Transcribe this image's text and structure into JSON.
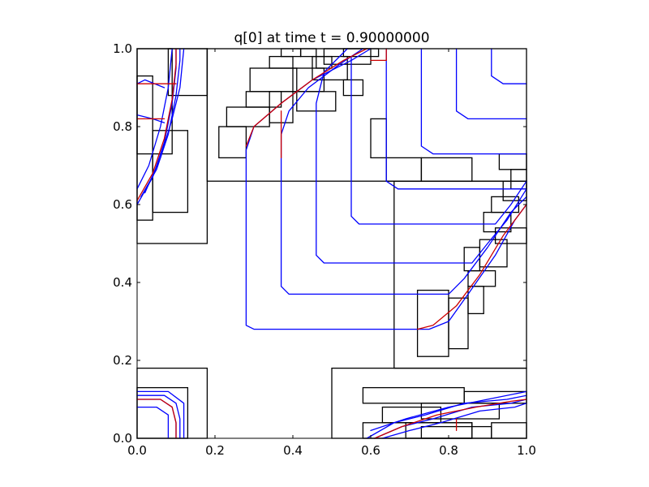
{
  "chart_data": {
    "type": "contour",
    "title": "q[0] at time t =     0.90000000",
    "xlim": [
      0,
      1
    ],
    "ylim": [
      0,
      1
    ],
    "x_ticks": [
      0.0,
      0.2,
      0.4,
      0.6,
      0.8,
      1.0
    ],
    "y_ticks": [
      0.0,
      0.2,
      0.4,
      0.6,
      0.8,
      1.0
    ],
    "x_tick_labels": [
      "0.0",
      "0.2",
      "0.4",
      "0.6",
      "0.8",
      "1.0"
    ],
    "y_tick_labels": [
      "0.0",
      "0.2",
      "0.4",
      "0.6",
      "0.8",
      "1.0"
    ],
    "grid": false,
    "colors": {
      "contour_lines": "#0000ff",
      "front_lines": "#cc0000",
      "patch_borders": "#000000"
    },
    "patches": [
      [
        0.0,
        0.5,
        0.18,
        1.0
      ],
      [
        0.0,
        0.56,
        0.04,
        0.93
      ],
      [
        0.0,
        0.73,
        0.09,
        1.0
      ],
      [
        0.04,
        0.58,
        0.13,
        0.79
      ],
      [
        0.08,
        0.88,
        0.18,
        1.0
      ],
      [
        0.18,
        0.66,
        1.0,
        1.0
      ],
      [
        0.21,
        0.72,
        0.28,
        0.8
      ],
      [
        0.23,
        0.8,
        0.34,
        0.85
      ],
      [
        0.28,
        0.85,
        0.37,
        0.89
      ],
      [
        0.34,
        0.81,
        0.4,
        0.89
      ],
      [
        0.29,
        0.89,
        0.41,
        0.95
      ],
      [
        0.34,
        0.95,
        0.4,
        0.98
      ],
      [
        0.37,
        0.98,
        0.42,
        1.0
      ],
      [
        0.41,
        0.84,
        0.51,
        0.89
      ],
      [
        0.4,
        0.89,
        0.48,
        0.95
      ],
      [
        0.45,
        0.92,
        0.54,
        0.98
      ],
      [
        0.48,
        0.96,
        0.6,
        1.0
      ],
      [
        0.53,
        0.98,
        0.62,
        1.0
      ],
      [
        0.42,
        0.98,
        0.46,
        1.0
      ],
      [
        0.46,
        0.95,
        0.5,
        0.98
      ],
      [
        0.53,
        0.88,
        0.58,
        0.92
      ],
      [
        0.6,
        0.72,
        0.64,
        0.82
      ],
      [
        0.64,
        0.66,
        0.73,
        0.72
      ],
      [
        0.73,
        0.66,
        0.86,
        0.72
      ],
      [
        0.66,
        0.18,
        1.0,
        0.66
      ],
      [
        0.72,
        0.21,
        0.8,
        0.38
      ],
      [
        0.8,
        0.23,
        0.85,
        0.36
      ],
      [
        0.85,
        0.32,
        0.89,
        0.39
      ],
      [
        0.85,
        0.39,
        0.92,
        0.43
      ],
      [
        0.84,
        0.43,
        0.88,
        0.49
      ],
      [
        0.88,
        0.44,
        0.95,
        0.51
      ],
      [
        0.92,
        0.5,
        1.0,
        0.54
      ],
      [
        0.89,
        0.53,
        0.96,
        0.58
      ],
      [
        0.91,
        0.58,
        0.98,
        0.62
      ],
      [
        0.94,
        0.61,
        1.0,
        0.66
      ],
      [
        0.96,
        0.64,
        1.0,
        0.69
      ],
      [
        0.93,
        0.69,
        1.0,
        0.73
      ],
      [
        0.0,
        0.0,
        0.18,
        0.18
      ],
      [
        0.0,
        0.0,
        0.13,
        0.13
      ],
      [
        0.5,
        0.0,
        1.0,
        0.18
      ],
      [
        0.58,
        0.0,
        0.86,
        0.04
      ],
      [
        0.63,
        0.04,
        0.78,
        0.08
      ],
      [
        0.69,
        0.0,
        0.86,
        0.04
      ],
      [
        0.73,
        0.05,
        0.93,
        0.09
      ],
      [
        0.58,
        0.09,
        0.84,
        0.13
      ],
      [
        0.84,
        0.09,
        1.0,
        0.12
      ],
      [
        0.73,
        0.0,
        0.91,
        0.03
      ],
      [
        0.91,
        0.0,
        1.0,
        0.04
      ]
    ],
    "contour_lines": [
      [
        [
          0.0,
          0.6
        ],
        [
          0.04,
          0.67
        ],
        [
          0.07,
          0.76
        ],
        [
          0.09,
          0.86
        ],
        [
          0.1,
          0.95
        ],
        [
          0.1,
          1.0
        ]
      ],
      [
        [
          0.01,
          0.62
        ],
        [
          0.05,
          0.69
        ],
        [
          0.08,
          0.78
        ],
        [
          0.1,
          0.88
        ],
        [
          0.11,
          0.97
        ],
        [
          0.11,
          1.0
        ]
      ],
      [
        [
          0.0,
          0.64
        ],
        [
          0.03,
          0.7
        ],
        [
          0.06,
          0.8
        ],
        [
          0.08,
          0.9
        ],
        [
          0.09,
          1.0
        ]
      ],
      [
        [
          0.02,
          0.63
        ],
        [
          0.06,
          0.72
        ],
        [
          0.09,
          0.82
        ],
        [
          0.11,
          0.9
        ],
        [
          0.12,
          1.0
        ]
      ],
      [
        [
          0.0,
          0.91
        ],
        [
          0.02,
          0.92
        ],
        [
          0.07,
          0.9
        ]
      ],
      [
        [
          0.0,
          0.83
        ],
        [
          0.04,
          0.82
        ],
        [
          0.07,
          0.81
        ]
      ],
      [
        [
          0.0,
          0.1
        ],
        [
          0.06,
          0.1
        ],
        [
          0.09,
          0.08
        ],
        [
          0.1,
          0.04
        ],
        [
          0.1,
          0.0
        ]
      ],
      [
        [
          0.0,
          0.11
        ],
        [
          0.07,
          0.11
        ],
        [
          0.1,
          0.09
        ],
        [
          0.11,
          0.05
        ],
        [
          0.11,
          0.0
        ]
      ],
      [
        [
          0.0,
          0.08
        ],
        [
          0.05,
          0.08
        ],
        [
          0.08,
          0.06
        ],
        [
          0.08,
          0.0
        ]
      ],
      [
        [
          0.0,
          0.12
        ],
        [
          0.08,
          0.12
        ],
        [
          0.12,
          0.09
        ],
        [
          0.12,
          0.0
        ]
      ],
      [
        [
          0.61,
          0.0
        ],
        [
          0.68,
          0.03
        ],
        [
          0.76,
          0.05
        ],
        [
          0.86,
          0.08
        ],
        [
          0.96,
          0.09
        ],
        [
          1.0,
          0.1
        ]
      ],
      [
        [
          0.59,
          0.0
        ],
        [
          0.66,
          0.04
        ],
        [
          0.74,
          0.06
        ],
        [
          0.84,
          0.09
        ],
        [
          0.95,
          0.1
        ],
        [
          1.0,
          0.11
        ]
      ],
      [
        [
          0.63,
          0.0
        ],
        [
          0.7,
          0.02
        ],
        [
          0.78,
          0.04
        ],
        [
          0.88,
          0.07
        ],
        [
          0.97,
          0.08
        ],
        [
          1.0,
          0.09
        ]
      ],
      [
        [
          0.6,
          0.02
        ],
        [
          0.69,
          0.05
        ],
        [
          0.8,
          0.08
        ],
        [
          0.9,
          0.1
        ],
        [
          1.0,
          0.12
        ]
      ],
      [
        [
          0.6,
          1.0
        ],
        [
          0.55,
          0.97
        ],
        [
          0.45,
          0.92
        ],
        [
          0.37,
          0.86
        ],
        [
          0.3,
          0.8
        ],
        [
          0.28,
          0.74
        ],
        [
          0.28,
          0.29
        ],
        [
          0.3,
          0.28
        ],
        [
          0.75,
          0.28
        ],
        [
          0.8,
          0.3
        ],
        [
          0.85,
          0.37
        ],
        [
          0.92,
          0.47
        ],
        [
          0.97,
          0.56
        ],
        [
          1.0,
          0.6
        ]
      ],
      [
        [
          0.58,
          1.0
        ],
        [
          0.52,
          0.96
        ],
        [
          0.44,
          0.9
        ],
        [
          0.39,
          0.84
        ],
        [
          0.37,
          0.78
        ],
        [
          0.37,
          0.39
        ],
        [
          0.39,
          0.37
        ],
        [
          0.8,
          0.37
        ],
        [
          0.84,
          0.41
        ],
        [
          0.9,
          0.49
        ],
        [
          0.96,
          0.58
        ],
        [
          1.0,
          0.62
        ]
      ],
      [
        [
          0.54,
          1.0
        ],
        [
          0.48,
          0.94
        ],
        [
          0.46,
          0.86
        ],
        [
          0.46,
          0.47
        ],
        [
          0.48,
          0.45
        ],
        [
          0.86,
          0.45
        ],
        [
          0.9,
          0.5
        ],
        [
          0.95,
          0.56
        ],
        [
          1.0,
          0.64
        ]
      ],
      [
        [
          0.55,
          0.98
        ],
        [
          0.55,
          0.57
        ],
        [
          0.57,
          0.55
        ],
        [
          0.92,
          0.55
        ],
        [
          0.96,
          0.6
        ],
        [
          1.0,
          0.66
        ]
      ],
      [
        [
          0.64,
          1.0
        ],
        [
          0.64,
          0.66
        ],
        [
          0.67,
          0.64
        ],
        [
          1.0,
          0.64
        ]
      ],
      [
        [
          0.73,
          1.0
        ],
        [
          0.73,
          0.75
        ],
        [
          0.76,
          0.73
        ],
        [
          1.0,
          0.73
        ]
      ],
      [
        [
          0.82,
          1.0
        ],
        [
          0.82,
          0.84
        ],
        [
          0.85,
          0.82
        ],
        [
          1.0,
          0.82
        ]
      ],
      [
        [
          0.91,
          1.0
        ],
        [
          0.91,
          0.93
        ],
        [
          0.94,
          0.91
        ],
        [
          1.0,
          0.91
        ]
      ]
    ],
    "front_lines": [
      [
        [
          0.0,
          0.61
        ],
        [
          0.04,
          0.68
        ],
        [
          0.07,
          0.77
        ],
        [
          0.09,
          0.87
        ],
        [
          0.1,
          0.96
        ],
        [
          0.1,
          1.0
        ]
      ],
      [
        [
          0.0,
          0.1
        ],
        [
          0.06,
          0.1
        ],
        [
          0.09,
          0.08
        ],
        [
          0.1,
          0.04
        ],
        [
          0.1,
          0.0
        ]
      ],
      [
        [
          0.61,
          0.0
        ],
        [
          0.68,
          0.03
        ],
        [
          0.77,
          0.06
        ],
        [
          0.87,
          0.08
        ],
        [
          0.96,
          0.095
        ],
        [
          1.0,
          0.1
        ]
      ],
      [
        [
          0.59,
          1.0
        ],
        [
          0.53,
          0.97
        ],
        [
          0.45,
          0.92
        ],
        [
          0.37,
          0.86
        ],
        [
          0.3,
          0.8
        ],
        [
          0.28,
          0.75
        ]
      ],
      [
        [
          0.72,
          0.28
        ],
        [
          0.76,
          0.29
        ],
        [
          0.82,
          0.34
        ],
        [
          0.88,
          0.42
        ],
        [
          0.94,
          0.52
        ],
        [
          1.0,
          0.6
        ]
      ],
      [
        [
          0.37,
          0.84
        ],
        [
          0.37,
          0.72
        ]
      ],
      [
        [
          0.82,
          0.02
        ],
        [
          0.82,
          0.05
        ]
      ],
      [
        [
          0.0,
          0.82
        ],
        [
          0.07,
          0.82
        ]
      ],
      [
        [
          0.1,
          0.91
        ],
        [
          0.0,
          0.91
        ]
      ],
      [
        [
          0.64,
          1.0
        ],
        [
          0.64,
          0.97
        ],
        [
          0.6,
          0.97
        ]
      ]
    ]
  }
}
